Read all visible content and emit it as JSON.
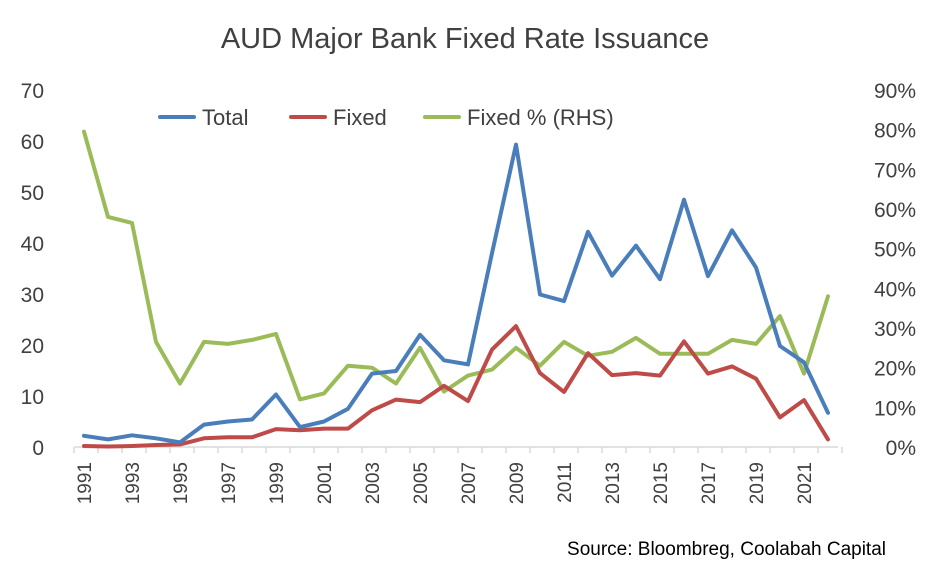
{
  "chart_data": {
    "type": "line",
    "title": "AUD Major Bank Fixed Rate Issuance",
    "source": "Source: Bloombreg, Coolabah Capital",
    "x": [
      1991,
      1992,
      1993,
      1994,
      1995,
      1996,
      1997,
      1998,
      1999,
      2000,
      2001,
      2002,
      2003,
      2004,
      2005,
      2006,
      2007,
      2008,
      2009,
      2010,
      2011,
      2012,
      2013,
      2014,
      2015,
      2016,
      2017,
      2018,
      2019,
      2020,
      2021,
      2022
    ],
    "x_tick_labels": [
      "1991",
      "1993",
      "1995",
      "1997",
      "1999",
      "2001",
      "2003",
      "2005",
      "2007",
      "2009",
      "2011",
      "2013",
      "2015",
      "2017",
      "2019",
      "2021"
    ],
    "ylim_left": [
      0,
      70
    ],
    "y_left_ticks": [
      "0",
      "10",
      "20",
      "30",
      "40",
      "50",
      "60",
      "70"
    ],
    "ylim_right": [
      0,
      90
    ],
    "y_right_ticks": [
      "0%",
      "10%",
      "20%",
      "30%",
      "40%",
      "50%",
      "60%",
      "70%",
      "80%",
      "90%"
    ],
    "legend_position": "top",
    "grid": false,
    "series": [
      {
        "name": "Total",
        "axis": "left",
        "color": "#4a7ebb",
        "values": [
          2.2,
          1.5,
          2.3,
          1.7,
          0.9,
          4.4,
          5.0,
          5.4,
          10.3,
          3.9,
          5.0,
          7.5,
          14.4,
          14.9,
          22.0,
          17.0,
          16.2,
          38.0,
          59.3,
          29.9,
          28.6,
          42.2,
          33.6,
          39.5,
          32.9,
          48.5,
          33.5,
          42.5,
          35.2,
          19.8,
          16.6,
          6.7
        ]
      },
      {
        "name": "Fixed",
        "axis": "left",
        "color": "#be4b48",
        "values": [
          0.2,
          0.1,
          0.2,
          0.4,
          0.5,
          1.7,
          1.9,
          1.9,
          3.5,
          3.3,
          3.6,
          3.6,
          7.2,
          9.3,
          8.8,
          12.0,
          9.0,
          19.1,
          23.7,
          14.5,
          10.8,
          18.4,
          14.1,
          14.5,
          14.0,
          20.7,
          14.4,
          15.8,
          13.4,
          5.8,
          9.2,
          1.5
        ]
      },
      {
        "name": "Fixed % (RHS)",
        "axis": "right",
        "color": "#9bbb59",
        "values": [
          79.5,
          58.0,
          56.5,
          26.5,
          16.0,
          26.5,
          26.0,
          27.0,
          28.5,
          12.0,
          13.5,
          20.5,
          20.0,
          16.0,
          25.0,
          14.0,
          18.0,
          19.5,
          25.0,
          20.5,
          26.5,
          23.0,
          24.0,
          27.5,
          23.5,
          23.5,
          23.5,
          27.0,
          26.0,
          33.0,
          18.5,
          38.0
        ]
      }
    ]
  }
}
